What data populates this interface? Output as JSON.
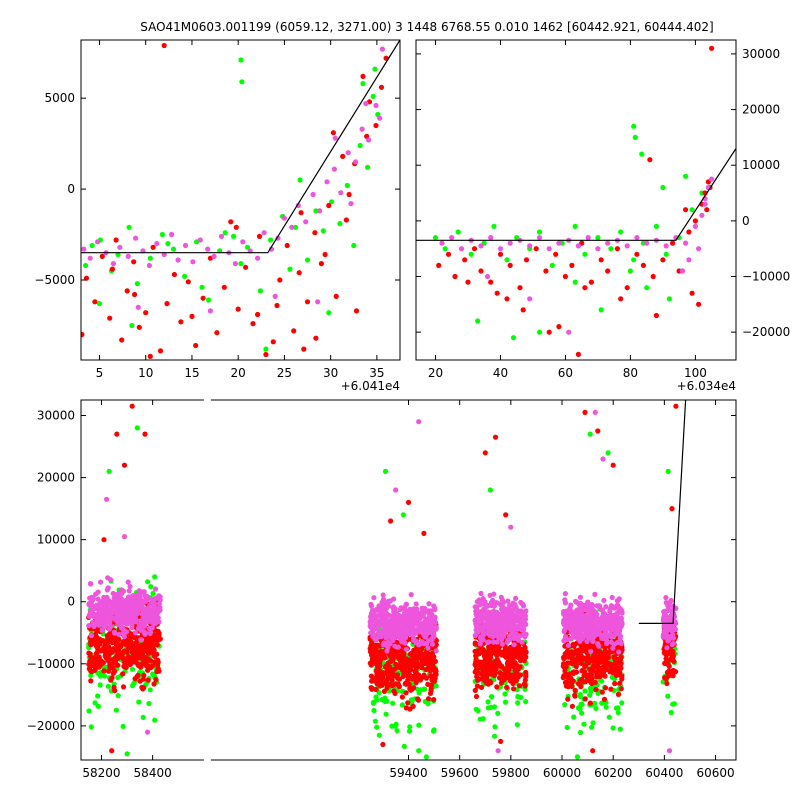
{
  "figure": {
    "title": "SAO41M0603.001199 (6059.12, 3271.00)  3 1448 6768.55 0.010 1462 [60442.921, 60444.402]"
  },
  "colors": {
    "green": "#00ff00",
    "red": "#ff0000",
    "magenta": "#ee55dd",
    "model": "#000000"
  },
  "chart_data": [
    {
      "panel": "top-left",
      "type": "scatter",
      "x_offset_label": "+6.041e4",
      "xlim": [
        3,
        37.5
      ],
      "ylim": [
        -9400,
        8200
      ],
      "xticks": [
        5,
        10,
        15,
        20,
        25,
        30,
        35
      ],
      "yticks": [
        -5000,
        0,
        5000
      ],
      "ytick_side": "left",
      "model_line": {
        "x": [
          3,
          23.2,
          37.5
        ],
        "y": [
          -3500,
          -3500,
          8200
        ]
      },
      "series": [
        {
          "color": "green",
          "x": [
            3.5,
            4.2,
            5.1,
            6.3,
            7.0,
            8.2,
            9.1,
            10.5,
            11.8,
            13.0,
            14.2,
            15.5,
            16.8,
            18.0,
            19.5,
            20.3,
            21.0,
            22.4,
            23.5,
            24.8,
            25.6,
            26.7,
            27.5,
            28.4,
            29.2,
            30.1,
            31.0,
            31.8,
            32.5,
            33.2,
            34.0,
            34.6,
            35.1,
            20.3,
            20.4,
            33.5,
            34.8,
            5.0,
            8.5,
            12.4,
            16.1,
            26.2,
            29.8,
            23.0,
            18.6
          ],
          "y": [
            -4200,
            -3100,
            -2800,
            -4500,
            -3600,
            -2100,
            -5200,
            -3800,
            -2500,
            -3300,
            -4800,
            -2900,
            -6100,
            -3400,
            -2600,
            -4100,
            -3200,
            -5600,
            -2800,
            -1500,
            -4400,
            500,
            -3900,
            -1200,
            -2300,
            -700,
            -1900,
            200,
            -3100,
            2400,
            1200,
            5100,
            4100,
            7100,
            5900,
            5800,
            6600,
            -6300,
            -7500,
            -3000,
            -5400,
            -2100,
            -6800,
            -8800,
            -2400
          ]
        },
        {
          "color": "red",
          "x": [
            3.1,
            3.6,
            4.5,
            5.3,
            6.1,
            6.8,
            7.4,
            8.0,
            8.7,
            9.3,
            10.0,
            10.8,
            11.6,
            12.3,
            13.1,
            13.8,
            14.6,
            15.4,
            16.2,
            17.0,
            17.7,
            18.5,
            19.2,
            20.0,
            20.8,
            21.6,
            22.3,
            23.0,
            23.8,
            24.5,
            25.3,
            26.0,
            26.8,
            27.5,
            28.3,
            29.0,
            29.8,
            30.6,
            31.3,
            32.0,
            32.8,
            33.5,
            34.2,
            34.9,
            35.5,
            12.0,
            36.0,
            31.7,
            28.4,
            24.2,
            26.6,
            30.3,
            32.6,
            8.8,
            15.0,
            19.8,
            22.1,
            27.1,
            33.9,
            29.4,
            10.5,
            6.4
          ],
          "y": [
            -8000,
            -4900,
            -6200,
            -3700,
            -7100,
            -2800,
            -8300,
            -5600,
            -4000,
            -7600,
            -6800,
            -3200,
            -8900,
            -6300,
            -4700,
            -7300,
            -5100,
            -8600,
            -6000,
            -3800,
            -7900,
            -5400,
            -1800,
            -6600,
            -4300,
            -7400,
            -2600,
            -9100,
            -8400,
            -5000,
            -3100,
            -7800,
            -1300,
            -6200,
            -2400,
            -4100,
            -900,
            -5900,
            1800,
            -300,
            -6700,
            6200,
            4800,
            3500,
            5600,
            7900,
            7200,
            -1700,
            -8200,
            -6400,
            -4600,
            3100,
            1400,
            -5800,
            -7000,
            -2100,
            -6900,
            -8800,
            2900,
            -3600,
            -9200,
            -4400
          ]
        },
        {
          "color": "magenta",
          "x": [
            3.3,
            4.0,
            4.8,
            5.7,
            6.5,
            7.2,
            8.1,
            8.9,
            9.7,
            10.4,
            11.2,
            12.0,
            12.8,
            13.5,
            14.3,
            15.1,
            15.9,
            16.7,
            17.4,
            18.2,
            19.0,
            19.7,
            20.5,
            21.3,
            22.1,
            22.8,
            23.6,
            24.3,
            25.0,
            25.8,
            26.5,
            27.3,
            28.1,
            28.8,
            29.6,
            30.4,
            31.1,
            31.9,
            32.7,
            33.4,
            34.1,
            34.9,
            35.3,
            30.5,
            32.2,
            33.8,
            9.2,
            17.0,
            24.0,
            28.6,
            35.6
          ],
          "y": [
            -3300,
            -3800,
            -2900,
            -3500,
            -4100,
            -3200,
            -3700,
            -2700,
            -3400,
            -4200,
            -3000,
            -3600,
            -2500,
            -3900,
            -3100,
            -4000,
            -2800,
            -3300,
            -3700,
            -2600,
            -3500,
            -4100,
            -2900,
            -3400,
            -3800,
            -2400,
            -3300,
            -2700,
            -1600,
            -2100,
            -900,
            -1800,
            -300,
            -1200,
            400,
            1100,
            -200,
            2000,
            1500,
            3300,
            2700,
            4600,
            3900,
            2800,
            -800,
            4700,
            -6500,
            -6700,
            -5900,
            -6200,
            7700
          ]
        }
      ]
    },
    {
      "panel": "top-right",
      "type": "scatter",
      "x_offset_label": "+6.034e4",
      "xlim": [
        14,
        112.5
      ],
      "ylim": [
        -25000,
        32500
      ],
      "xticks": [
        20,
        40,
        60,
        80,
        100
      ],
      "yticks": [
        -20000,
        -10000,
        0,
        10000,
        20000,
        30000
      ],
      "ytick_side": "right",
      "model_line": {
        "x": [
          14,
          94,
          112.5
        ],
        "y": [
          -3500,
          -3500,
          13000
        ]
      },
      "series": [
        {
          "color": "green",
          "x": [
            20,
            23,
            27,
            31,
            35,
            38,
            42,
            45,
            49,
            52,
            56,
            59,
            63,
            66,
            70,
            74,
            77,
            81,
            84,
            88,
            91,
            95,
            99,
            102,
            81,
            81.5,
            83.5,
            90,
            97,
            80,
            85,
            33,
            52,
            71,
            92,
            44,
            63
          ],
          "y": [
            -3000,
            -5000,
            -2000,
            -6000,
            -4000,
            -1000,
            -7000,
            -3000,
            -5000,
            -2000,
            -8000,
            -4000,
            -1000,
            -6000,
            -3000,
            -5000,
            -2000,
            -7000,
            -4000,
            -1000,
            -6000,
            -3000,
            2000,
            5000,
            17000,
            15000,
            12000,
            6000,
            8000,
            -9000,
            -12000,
            -18000,
            -20000,
            -16000,
            -14000,
            -21000,
            -11000
          ]
        },
        {
          "color": "red",
          "x": [
            21,
            24,
            26,
            29,
            32,
            34,
            37,
            40,
            43,
            46,
            48,
            51,
            54,
            57,
            60,
            62,
            65,
            68,
            71,
            73,
            76,
            79,
            82,
            84,
            87,
            90,
            93,
            96,
            98,
            100,
            102,
            103,
            104,
            101,
            99,
            95,
            88,
            77,
            64,
            55,
            47,
            39,
            30,
            104.5,
            105,
            103.5,
            66,
            86,
            97,
            58,
            42
          ],
          "y": [
            -8000,
            -6000,
            -10000,
            -7000,
            -5000,
            -9000,
            -11000,
            -6000,
            -8000,
            -12000,
            -7000,
            -5000,
            -9000,
            -6000,
            -10000,
            -8000,
            -4000,
            -11000,
            -7000,
            -9000,
            -5000,
            -12000,
            -6000,
            -8000,
            -10000,
            -7000,
            -4000,
            -9000,
            -2000,
            0,
            3000,
            5000,
            7000,
            -15000,
            -13000,
            -9000,
            -17000,
            -14000,
            -24000,
            -20000,
            -16000,
            -13000,
            -11000,
            6000,
            31000,
            2000,
            -12000,
            11000,
            2000,
            -19000,
            -14000
          ]
        },
        {
          "color": "magenta",
          "x": [
            22,
            25,
            28,
            31,
            34,
            37,
            40,
            43,
            46,
            49,
            52,
            55,
            58,
            61,
            64,
            67,
            70,
            73,
            76,
            79,
            82,
            85,
            88,
            91,
            94,
            97,
            100,
            102,
            103,
            104,
            105,
            96,
            98,
            101,
            61,
            49,
            36,
            103
          ],
          "y": [
            -4000,
            -3000,
            -5000,
            -3500,
            -4500,
            -3000,
            -5000,
            -4000,
            -3500,
            -4500,
            -3000,
            -5000,
            -4000,
            -3500,
            -4500,
            -3000,
            -5000,
            -4000,
            -3500,
            -4500,
            -3000,
            -4000,
            -3500,
            -4500,
            -3000,
            -4000,
            -1000,
            1000,
            4000,
            6000,
            7500,
            -9000,
            -7000,
            -5000,
            -20000,
            -14000,
            -10000,
            3000
          ]
        }
      ]
    },
    {
      "panel": "bottom",
      "type": "scatter",
      "xlim": [
        58120,
        60680
      ],
      "ylim": [
        -25500,
        32500
      ],
      "xticks": [
        58200,
        58400,
        59400,
        59600,
        59800,
        60000,
        60200,
        60400,
        60600
      ],
      "yticks": [
        -20000,
        -10000,
        0,
        10000,
        20000,
        30000
      ],
      "ytick_side": "left",
      "axis_gap_x": [
        58620,
        59220
      ],
      "model_line": {
        "x": [
          60300,
          60434,
          60483
        ],
        "y": [
          -3500,
          -3500,
          32500
        ]
      },
      "clusters": [
        {
          "x_range": [
            58150,
            58430
          ],
          "magenta_center": -1500,
          "red_center": -7000,
          "green_center": -8000
        },
        {
          "x_range": [
            59250,
            59510
          ],
          "magenta_center": -3500,
          "red_center": -9500,
          "green_center": -12000
        },
        {
          "x_range": [
            59660,
            59860
          ],
          "magenta_center": -3000,
          "red_center": -8500,
          "green_center": -11000
        },
        {
          "x_range": [
            60005,
            60235
          ],
          "magenta_center": -3200,
          "red_center": -9000,
          "green_center": -12000
        },
        {
          "x_range": [
            60395,
            60445
          ],
          "magenta_center": -3500,
          "red_center": -7500,
          "green_center": -10000
        }
      ],
      "outliers": [
        {
          "color": "red",
          "x": [
            58210,
            58260,
            58290,
            58320,
            58370,
            59330,
            59400,
            59460,
            59700,
            59740,
            59780,
            60090,
            60140,
            60200,
            60430,
            60445,
            58240,
            59300,
            59760,
            60120
          ],
          "y": [
            10000,
            27000,
            22000,
            31500,
            27000,
            13000,
            16000,
            11000,
            24000,
            26500,
            14000,
            30500,
            27500,
            22000,
            15000,
            31500,
            -24000,
            -23000,
            -22500,
            -24000
          ]
        },
        {
          "color": "green",
          "x": [
            58230,
            58340,
            59310,
            59380,
            59440,
            59720,
            60110,
            60180,
            60415,
            58300,
            59470,
            60060
          ],
          "y": [
            21000,
            28000,
            21000,
            14000,
            -24000,
            18000,
            27000,
            24000,
            21000,
            -24500,
            -25000,
            -25000
          ]
        },
        {
          "color": "magenta",
          "x": [
            58220,
            58290,
            59350,
            59440,
            59800,
            60130,
            60160,
            60420,
            58380,
            59750
          ],
          "y": [
            16500,
            10500,
            18000,
            29000,
            12000,
            30500,
            23000,
            -24000,
            -21000,
            -24000
          ]
        }
      ]
    }
  ]
}
